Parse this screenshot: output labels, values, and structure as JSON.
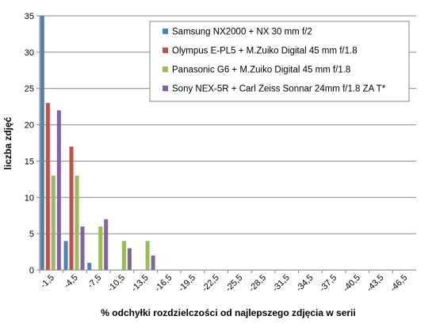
{
  "chart_data": {
    "type": "bar",
    "title": "",
    "xlabel": "% odchyłki rozdzielczości od najlepszego zdjęcia w serii",
    "ylabel": "liczba zdjęć",
    "ylim": [
      0,
      35
    ],
    "yticks": [
      0,
      5,
      10,
      15,
      20,
      25,
      30,
      35
    ],
    "grid": true,
    "legend_position": "top-right",
    "categories": [
      "-1,5",
      "-4,5",
      "-7,5",
      "-10,5",
      "-13,5",
      "-16,5",
      "-19,5",
      "-22,5",
      "-25,5",
      "-28,5",
      "-31,5",
      "-34,5",
      "-37,5",
      "-40,5",
      "-43,5",
      "-46,5"
    ],
    "series": [
      {
        "name": "Samsung NX2000 + NX 30 mm f/2",
        "color": "#4F81BD",
        "values": [
          35,
          4,
          1,
          0,
          0,
          0,
          0,
          0,
          0,
          0,
          0,
          0,
          0,
          0,
          0,
          0
        ]
      },
      {
        "name": "Olympus E-PL5 + M.Zuiko Digital 45 mm f/1.8",
        "color": "#C0504D",
        "values": [
          23,
          17,
          0,
          0,
          0,
          0,
          0,
          0,
          0,
          0,
          0,
          0,
          0,
          0,
          0,
          0
        ]
      },
      {
        "name": "Panasonic G6 + M.Zuiko Digital 45 mm f/1.8",
        "color": "#9BBB59",
        "values": [
          13,
          13,
          6,
          4,
          4,
          0,
          0,
          0,
          0,
          0,
          0,
          0,
          0,
          0,
          0,
          0
        ]
      },
      {
        "name": "Sony NEX-5R + Carl Zeiss Sonnar 24mm f/1.8 ZA T*",
        "color": "#8064A2",
        "values": [
          22,
          6,
          7,
          3,
          2,
          0,
          0,
          0,
          0,
          0,
          0,
          0,
          0,
          0,
          0,
          0
        ]
      }
    ]
  }
}
